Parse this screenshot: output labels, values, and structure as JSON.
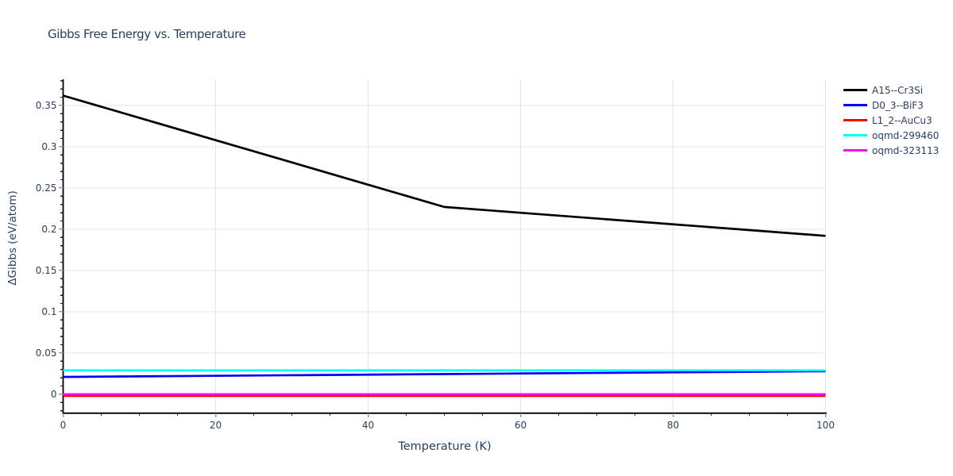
{
  "colors": {
    "background": "#ffffff",
    "text": "#2a3f5f",
    "grid": "#e5e5e5",
    "axis_line": "#000000",
    "tick_major": "#999999",
    "tick_minor": "#222222"
  },
  "chart_data": {
    "type": "line",
    "title": "Gibbs Free Energy vs. Temperature",
    "xlabel": "Temperature (K)",
    "ylabel": "ΔGibbs (eV/atom)",
    "x_range": [
      0,
      100
    ],
    "y_range": [
      -0.0229,
      0.3817
    ],
    "grid": true,
    "legend_position": "right-outside-top",
    "x_ticks": {
      "major": [
        0,
        20,
        40,
        60,
        80,
        100
      ],
      "minor_step": 5,
      "labels": [
        "0",
        "20",
        "40",
        "60",
        "80",
        "100"
      ]
    },
    "y_ticks": {
      "major": [
        0,
        0.05,
        0.1,
        0.15,
        0.2,
        0.25,
        0.3,
        0.35
      ],
      "minor_step": 0.01,
      "minor_min": -0.02,
      "minor_max": 0.38,
      "labels": [
        "0",
        "0.05",
        "0.1",
        "0.15",
        "0.2",
        "0.25",
        "0.3",
        "0.35"
      ]
    },
    "x": [
      0,
      10,
      20,
      30,
      40,
      50,
      60,
      70,
      80,
      90,
      100
    ],
    "series": [
      {
        "name": "A15--Cr3Si",
        "color": "#000000",
        "y": [
          0.362,
          0.335,
          0.308,
          0.281,
          0.254,
          0.227,
          0.22,
          0.213,
          0.206,
          0.199,
          0.192
        ]
      },
      {
        "name": "D0_3--BiF3",
        "color": "#0000ff",
        "y": [
          0.021,
          0.0217,
          0.0224,
          0.0231,
          0.0238,
          0.0245,
          0.0252,
          0.0259,
          0.0266,
          0.0273,
          0.028
        ]
      },
      {
        "name": "L1_2--AuCu3",
        "color": "#ff0000",
        "y": [
          -0.002,
          -0.002,
          -0.002,
          -0.002,
          -0.002,
          -0.002,
          -0.002,
          -0.002,
          -0.002,
          -0.002,
          -0.002
        ]
      },
      {
        "name": "oqmd-299460",
        "color": "#00ffff",
        "y": [
          0.029,
          0.029,
          0.029,
          0.029,
          0.029,
          0.029,
          0.029,
          0.029,
          0.029,
          0.029,
          0.029
        ]
      },
      {
        "name": "oqmd-323113",
        "color": "#ff00ff",
        "y": [
          0,
          0,
          0,
          0,
          0,
          0,
          0,
          0,
          0,
          0,
          0
        ]
      }
    ]
  }
}
